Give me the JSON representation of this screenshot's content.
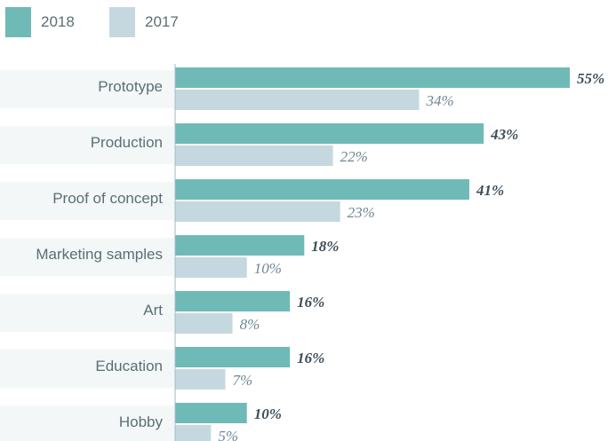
{
  "colors": {
    "y2018": "#6fbab6",
    "y2017": "#c5d8e0",
    "rowBg": "#f3f7f8",
    "labelText": "#5b6f74",
    "val2018": "#3d4e57",
    "val2017": "#6f8792"
  },
  "legend": [
    {
      "label": "2018",
      "color": "#6fbab6"
    },
    {
      "label": "2017",
      "color": "#c5d8e0"
    }
  ],
  "chart_data": {
    "type": "bar",
    "orientation": "horizontal",
    "categories": [
      "Prototype",
      "Production",
      "Proof of concept",
      "Marketing samples",
      "Art",
      "Education",
      "Hobby"
    ],
    "series": [
      {
        "name": "2018",
        "values": [
          55,
          43,
          41,
          18,
          16,
          16,
          10
        ],
        "labels": [
          "55%",
          "43%",
          "41%",
          "18%",
          "16%",
          "16%",
          "10%"
        ]
      },
      {
        "name": "2017",
        "values": [
          34,
          22,
          23,
          10,
          8,
          7,
          5
        ],
        "labels": [
          "34%",
          "22%",
          "23%",
          "10%",
          "8%",
          "7%",
          "5%"
        ]
      }
    ],
    "xlim": [
      0,
      55
    ],
    "grid": false,
    "legend_position": "top-left"
  }
}
